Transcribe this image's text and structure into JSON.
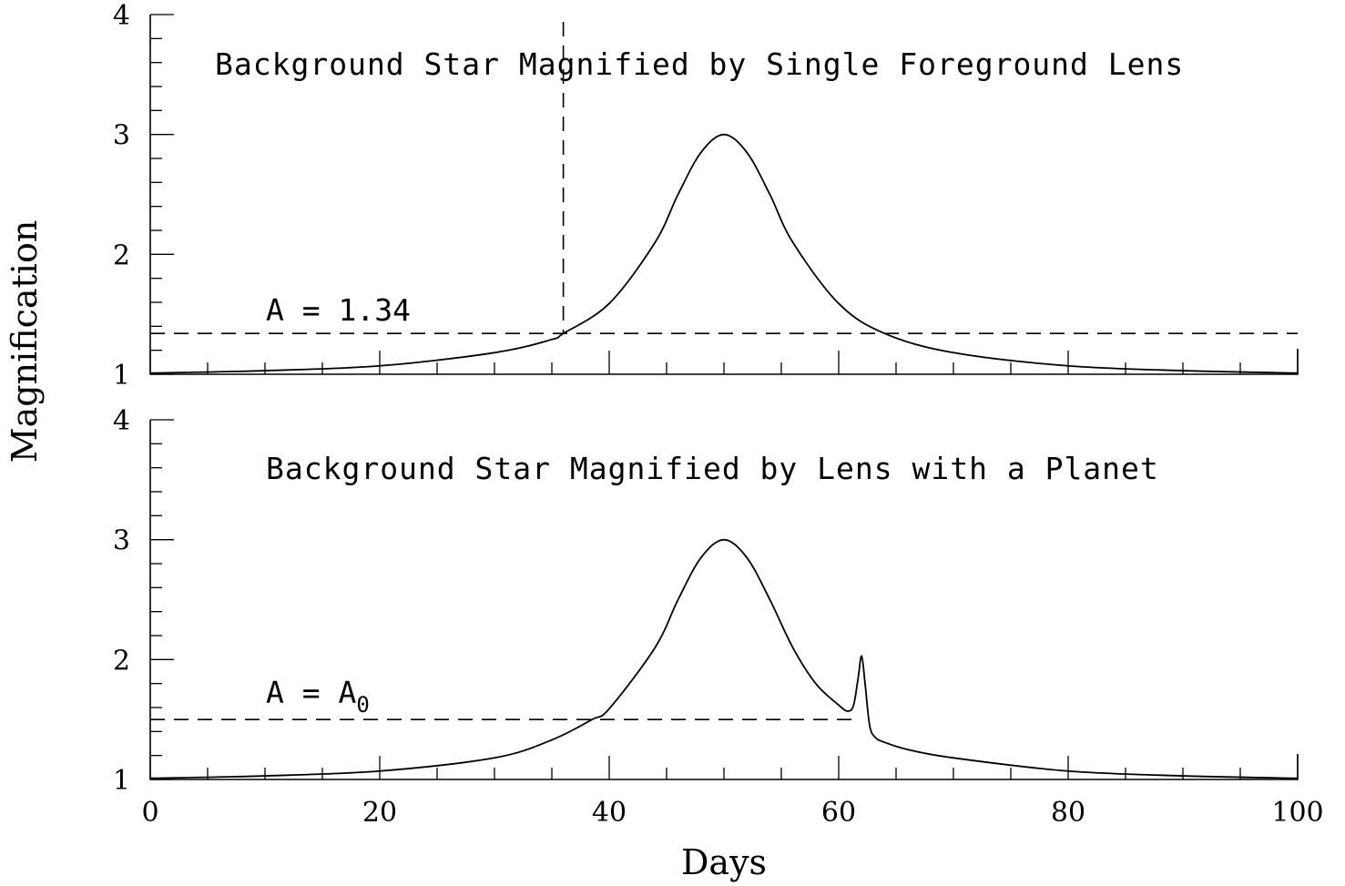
{
  "chart_data": [
    {
      "type": "line",
      "title": "Background Star Magnified by Single Foreground Lens",
      "xlabel": "",
      "ylabel": "Magnification",
      "xlim": [
        0,
        100
      ],
      "ylim": [
        1,
        4
      ],
      "x_ticks": [
        "0",
        "20",
        "40",
        "60",
        "80",
        "100"
      ],
      "y_ticks": [
        "1",
        "2",
        "3",
        "4"
      ],
      "x_tick_labels_shown": false,
      "series": [
        {
          "x": [
            0,
            10,
            20,
            30,
            35,
            36,
            40,
            44,
            46,
            48,
            50,
            52,
            54,
            56,
            60,
            64,
            70,
            80,
            90,
            100
          ],
          "y": [
            1.01,
            1.03,
            1.07,
            1.18,
            1.29,
            1.34,
            1.59,
            2.1,
            2.5,
            2.85,
            3.0,
            2.85,
            2.5,
            2.1,
            1.59,
            1.34,
            1.18,
            1.07,
            1.03,
            1.01
          ]
        }
      ],
      "reference_lines": [
        {
          "orientation": "horizontal",
          "y": 1.34,
          "style": "dashed"
        },
        {
          "orientation": "vertical",
          "x": 36,
          "style": "dashed"
        }
      ],
      "annotations": [
        {
          "text": "A = 1.34"
        }
      ]
    },
    {
      "type": "line",
      "title": "Background Star Magnified by Lens with a Planet",
      "xlabel": "Days",
      "ylabel": "Magnification",
      "xlim": [
        0,
        100
      ],
      "ylim": [
        1,
        4
      ],
      "x_ticks": [
        "0",
        "20",
        "40",
        "60",
        "80",
        "100"
      ],
      "y_ticks": [
        "1",
        "2",
        "3",
        "4"
      ],
      "series": [
        {
          "x": [
            0,
            10,
            20,
            30,
            35,
            38.5,
            40,
            44,
            46,
            48,
            50,
            52,
            54,
            56,
            58,
            60,
            60.8,
            61.3,
            61.7,
            62.0,
            62.3,
            62.7,
            63.2,
            64,
            66,
            70,
            80,
            90,
            100
          ],
          "y": [
            1.01,
            1.03,
            1.07,
            1.18,
            1.33,
            1.5,
            1.59,
            2.1,
            2.5,
            2.85,
            3.0,
            2.85,
            2.5,
            2.1,
            1.8,
            1.62,
            1.57,
            1.62,
            1.85,
            2.03,
            1.8,
            1.45,
            1.35,
            1.31,
            1.25,
            1.18,
            1.07,
            1.03,
            1.01
          ]
        }
      ],
      "reference_lines": [
        {
          "orientation": "horizontal",
          "y": 1.5,
          "x_range": [
            0,
            61.5
          ],
          "style": "dashed"
        }
      ],
      "annotations": [
        {
          "text": "A = A",
          "subscript": "0"
        }
      ]
    }
  ],
  "labels": {
    "y_axis": "Magnification",
    "x_axis": "Days",
    "top_title": "Background Star Magnified by Single Foreground Lens",
    "bottom_title": "Background Star Magnified by Lens with a Planet",
    "top_annotation": "A = 1.34",
    "bottom_annotation_main": "A = A",
    "bottom_annotation_sub": "0"
  }
}
